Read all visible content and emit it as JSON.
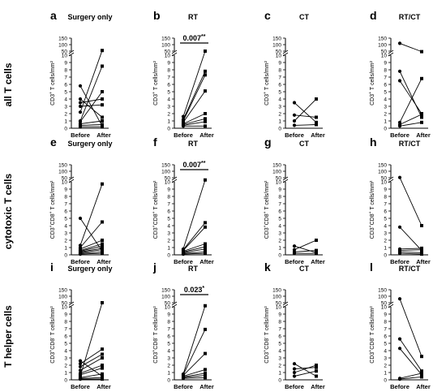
{
  "figure": {
    "row_labels": [
      "all T cells",
      "cytotoxic T cells",
      "T helper cells"
    ],
    "colors": {
      "axis": "#000000",
      "line": "#000000",
      "background": "#ffffff"
    }
  },
  "chart_data": [
    {
      "id": "a",
      "type": "line",
      "title": "Surgery only",
      "categories": [
        "Before",
        "After"
      ],
      "ylabel_main": "CD3",
      "ylabel_sup": "+",
      "ylabel_tail": " T cells/mm²",
      "lower_ticks": [
        "0",
        "1",
        "2",
        "3",
        "4",
        "5",
        "6",
        "7",
        "8",
        "9",
        "10"
      ],
      "upper_ticks": [
        "50",
        "100",
        "150"
      ],
      "marker_before": "circle",
      "marker_after": "square",
      "series": [
        {
          "before": 5.8,
          "after": 0.3
        },
        {
          "before": 4.0,
          "after": 1.5
        },
        {
          "before": 3.5,
          "after": 4.0
        },
        {
          "before": 3.0,
          "after": 3.2
        },
        {
          "before": 2.2,
          "after": 55
        },
        {
          "before": 1.0,
          "after": 8.5
        },
        {
          "before": 0.9,
          "after": 5.0
        },
        {
          "before": 0.6,
          "after": 1.0
        },
        {
          "before": 0.4,
          "after": 0.5
        },
        {
          "before": 0.2,
          "after": 0.2
        }
      ]
    },
    {
      "id": "b",
      "type": "line",
      "title": "RT",
      "categories": [
        "Before",
        "After"
      ],
      "ylabel_main": "CD3",
      "ylabel_sup": "+",
      "ylabel_tail": " T cells/mm²",
      "lower_ticks": [
        "0",
        "1",
        "2",
        "3",
        "4",
        "5",
        "6",
        "7",
        "8",
        "9",
        "10"
      ],
      "upper_ticks": [
        "50",
        "100",
        "150"
      ],
      "marker_before": "circle",
      "marker_after": "square",
      "stat": {
        "text": "0.007",
        "stars": "**"
      },
      "series": [
        {
          "before": 1.6,
          "after": 50
        },
        {
          "before": 1.2,
          "after": 7.8
        },
        {
          "before": 1.0,
          "after": 7.3
        },
        {
          "before": 0.8,
          "after": 5.1
        },
        {
          "before": 0.6,
          "after": 2.0
        },
        {
          "before": 0.5,
          "after": 1.3
        },
        {
          "before": 0.4,
          "after": 0.9
        },
        {
          "before": 0.3,
          "after": 0.3
        }
      ]
    },
    {
      "id": "c",
      "type": "line",
      "title": "CT",
      "categories": [
        "Before",
        "After"
      ],
      "ylabel_main": "CD3",
      "ylabel_sup": "+",
      "ylabel_tail": " T cells/mm²",
      "lower_ticks": [
        "0",
        "1",
        "2",
        "3",
        "4",
        "5",
        "6",
        "7",
        "8",
        "9",
        "10"
      ],
      "upper_ticks": [
        "50",
        "100",
        "150"
      ],
      "marker_before": "circle",
      "marker_after": "square",
      "series": [
        {
          "before": 3.5,
          "after": 0.8
        },
        {
          "before": 1.8,
          "after": 1.5
        },
        {
          "before": 1.0,
          "after": 4.0
        },
        {
          "before": 0.4,
          "after": 0.5
        }
      ]
    },
    {
      "id": "d",
      "type": "line",
      "title": "RT/CT",
      "categories": [
        "Before",
        "After"
      ],
      "ylabel_main": "CD3",
      "ylabel_sup": "+",
      "ylabel_tail": " T cells/mm²",
      "lower_ticks": [
        "0",
        "1",
        "2",
        "3",
        "4",
        "5",
        "6",
        "7",
        "8",
        "9",
        "10"
      ],
      "upper_ticks": [
        "50",
        "100",
        "150"
      ],
      "marker_before": "circle",
      "marker_after": "square",
      "series": [
        {
          "before": 110,
          "after": 45
        },
        {
          "before": 7.8,
          "after": 1.5
        },
        {
          "before": 6.5,
          "after": 2.0
        },
        {
          "before": 0.8,
          "after": 6.8
        },
        {
          "before": 0.5,
          "after": 1.9
        },
        {
          "before": 0.3,
          "after": 0.8
        }
      ]
    },
    {
      "id": "e",
      "type": "line",
      "title": "Surgery only",
      "categories": [
        "Before",
        "After"
      ],
      "ylabel_main": "CD3",
      "ylabel_sup": "+",
      "ylabel_mid": "CD8",
      "ylabel_sup2": "+",
      "ylabel_tail": " T cells/mm²",
      "lower_ticks": [
        "0",
        "1",
        "2",
        "3",
        "4",
        "5",
        "6",
        "7",
        "8",
        "9",
        "10"
      ],
      "upper_ticks": [
        "50",
        "100",
        "150"
      ],
      "marker_before": "circle",
      "marker_after": "square",
      "series": [
        {
          "before": 5.0,
          "after": 0.5
        },
        {
          "before": 1.3,
          "after": 9.7
        },
        {
          "before": 1.0,
          "after": 4.5
        },
        {
          "before": 0.8,
          "after": 2.0
        },
        {
          "before": 0.6,
          "after": 1.5
        },
        {
          "before": 0.5,
          "after": 1.2
        },
        {
          "before": 0.4,
          "after": 0.9
        },
        {
          "before": 0.3,
          "after": 0.7
        },
        {
          "before": 0.2,
          "after": 0.4
        },
        {
          "before": 0.1,
          "after": 0.2
        }
      ]
    },
    {
      "id": "f",
      "type": "line",
      "title": "RT",
      "categories": [
        "Before",
        "After"
      ],
      "ylabel_main": "CD3",
      "ylabel_sup": "+",
      "ylabel_mid": "CD8",
      "ylabel_sup2": "+",
      "ylabel_tail": " T cells/mm²",
      "lower_ticks": [
        "0",
        "1",
        "2",
        "3",
        "4",
        "5",
        "6",
        "7",
        "8",
        "9",
        "10"
      ],
      "upper_ticks": [
        "50",
        "100",
        "150"
      ],
      "marker_before": "circle",
      "marker_after": "square",
      "stat": {
        "text": "0.007",
        "stars": "**"
      },
      "series": [
        {
          "before": 0.8,
          "after": 28
        },
        {
          "before": 0.7,
          "after": 4.4
        },
        {
          "before": 0.6,
          "after": 3.8
        },
        {
          "before": 0.5,
          "after": 1.5
        },
        {
          "before": 0.4,
          "after": 1.1
        },
        {
          "before": 0.3,
          "after": 0.8
        },
        {
          "before": 0.2,
          "after": 0.4
        },
        {
          "before": 0.1,
          "after": 0.2
        }
      ]
    },
    {
      "id": "g",
      "type": "line",
      "title": "CT",
      "categories": [
        "Before",
        "After"
      ],
      "ylabel_main": "CD3",
      "ylabel_sup": "+",
      "ylabel_mid": "CD8",
      "ylabel_sup2": "+",
      "ylabel_tail": " T cells/mm²",
      "lower_ticks": [
        "0",
        "1",
        "2",
        "3",
        "4",
        "5",
        "6",
        "7",
        "8",
        "9",
        "10"
      ],
      "upper_ticks": [
        "50",
        "100",
        "150"
      ],
      "marker_before": "circle",
      "marker_after": "square",
      "series": [
        {
          "before": 1.2,
          "after": 0.3
        },
        {
          "before": 0.7,
          "after": 2.0
        },
        {
          "before": 0.4,
          "after": 0.6
        },
        {
          "before": 0.2,
          "after": 0.2
        }
      ]
    },
    {
      "id": "h",
      "type": "line",
      "title": "RT/CT",
      "categories": [
        "Before",
        "After"
      ],
      "ylabel_main": "CD3",
      "ylabel_sup": "+",
      "ylabel_mid": "CD8",
      "ylabel_sup2": "+",
      "ylabel_tail": " T cells/mm²",
      "lower_ticks": [
        "0",
        "1",
        "2",
        "3",
        "4",
        "5",
        "6",
        "7",
        "8",
        "9",
        "10"
      ],
      "upper_ticks": [
        "50",
        "100",
        "150"
      ],
      "marker_before": "circle",
      "marker_after": "square",
      "series": [
        {
          "before": 52,
          "after": 4.0
        },
        {
          "before": 3.8,
          "after": 0.6
        },
        {
          "before": 0.8,
          "after": 0.9
        },
        {
          "before": 0.6,
          "after": 0.7
        },
        {
          "before": 0.4,
          "after": 0.3
        },
        {
          "before": 0.2,
          "after": 0.1
        }
      ]
    },
    {
      "id": "i",
      "type": "line",
      "title": "Surgery only",
      "categories": [
        "Before",
        "After"
      ],
      "ylabel_main": "CD3",
      "ylabel_sup": "+",
      "ylabel_mid": "CD8",
      "ylabel_sup2": "-",
      "ylabel_tail": " T cells/mm²",
      "lower_ticks": [
        "0",
        "1",
        "2",
        "3",
        "4",
        "5",
        "6",
        "7",
        "8",
        "9",
        "10"
      ],
      "upper_ticks": [
        "50",
        "100",
        "150"
      ],
      "marker_before": "circle",
      "marker_after": "square",
      "series": [
        {
          "before": 2.6,
          "after": 0.5
        },
        {
          "before": 2.2,
          "after": 4.2
        },
        {
          "before": 1.8,
          "after": 3.5
        },
        {
          "before": 1.3,
          "after": 3.0
        },
        {
          "before": 0.9,
          "after": 2.0
        },
        {
          "before": 0.7,
          "after": 1.6
        },
        {
          "before": 0.5,
          "after": 50
        },
        {
          "before": 0.3,
          "after": 0.8
        },
        {
          "before": 0.2,
          "after": 0.3
        },
        {
          "before": 0.1,
          "after": 0.1
        }
      ]
    },
    {
      "id": "j",
      "type": "line",
      "title": "RT",
      "categories": [
        "Before",
        "After"
      ],
      "ylabel_main": "CD3",
      "ylabel_sup": "+",
      "ylabel_mid": "CD8",
      "ylabel_sup2": "-",
      "ylabel_tail": " T cells/mm²",
      "lower_ticks": [
        "0",
        "1",
        "2",
        "3",
        "4",
        "5",
        "6",
        "7",
        "8",
        "9",
        "10"
      ],
      "upper_ticks": [
        "50",
        "100",
        "150"
      ],
      "marker_before": "circle",
      "marker_after": "square",
      "stat": {
        "text": "0.023",
        "stars": "*"
      },
      "series": [
        {
          "before": 0.8,
          "after": 20
        },
        {
          "before": 0.7,
          "after": 6.9
        },
        {
          "before": 0.6,
          "after": 3.6
        },
        {
          "before": 0.5,
          "after": 1.4
        },
        {
          "before": 0.4,
          "after": 0.9
        },
        {
          "before": 0.3,
          "after": 0.6
        },
        {
          "before": 0.2,
          "after": 0.3
        }
      ]
    },
    {
      "id": "k",
      "type": "line",
      "title": "CT",
      "categories": [
        "Before",
        "After"
      ],
      "ylabel_main": "CD3",
      "ylabel_sup": "+",
      "ylabel_mid": "CD8",
      "ylabel_sup2": "-",
      "ylabel_tail": " T cells/mm²",
      "lower_ticks": [
        "0",
        "1",
        "2",
        "3",
        "4",
        "5",
        "6",
        "7",
        "8",
        "9",
        "10"
      ],
      "upper_ticks": [
        "50",
        "100",
        "150"
      ],
      "marker_before": "circle",
      "marker_after": "square",
      "series": [
        {
          "before": 2.2,
          "after": 0.5
        },
        {
          "before": 1.5,
          "after": 1.7
        },
        {
          "before": 1.0,
          "after": 2.0
        },
        {
          "before": 0.5,
          "after": 1.2
        }
      ]
    },
    {
      "id": "l",
      "type": "line",
      "title": "RT/CT",
      "categories": [
        "Before",
        "After"
      ],
      "ylabel_main": "CD3",
      "ylabel_sup": "+",
      "ylabel_mid": "CD8",
      "ylabel_sup2": "-",
      "ylabel_tail": " T cells/mm²",
      "lower_ticks": [
        "0",
        "1",
        "2",
        "3",
        "4",
        "5",
        "6",
        "7",
        "8",
        "9",
        "10"
      ],
      "upper_ticks": [
        "50",
        "100",
        "150"
      ],
      "marker_before": "circle",
      "marker_after": "square",
      "series": [
        {
          "before": 80,
          "after": 3.2
        },
        {
          "before": 5.6,
          "after": 1.2
        },
        {
          "before": 4.3,
          "after": 0.7
        },
        {
          "before": 0.2,
          "after": 0.9
        },
        {
          "before": 0.1,
          "after": 0.4
        }
      ]
    }
  ]
}
